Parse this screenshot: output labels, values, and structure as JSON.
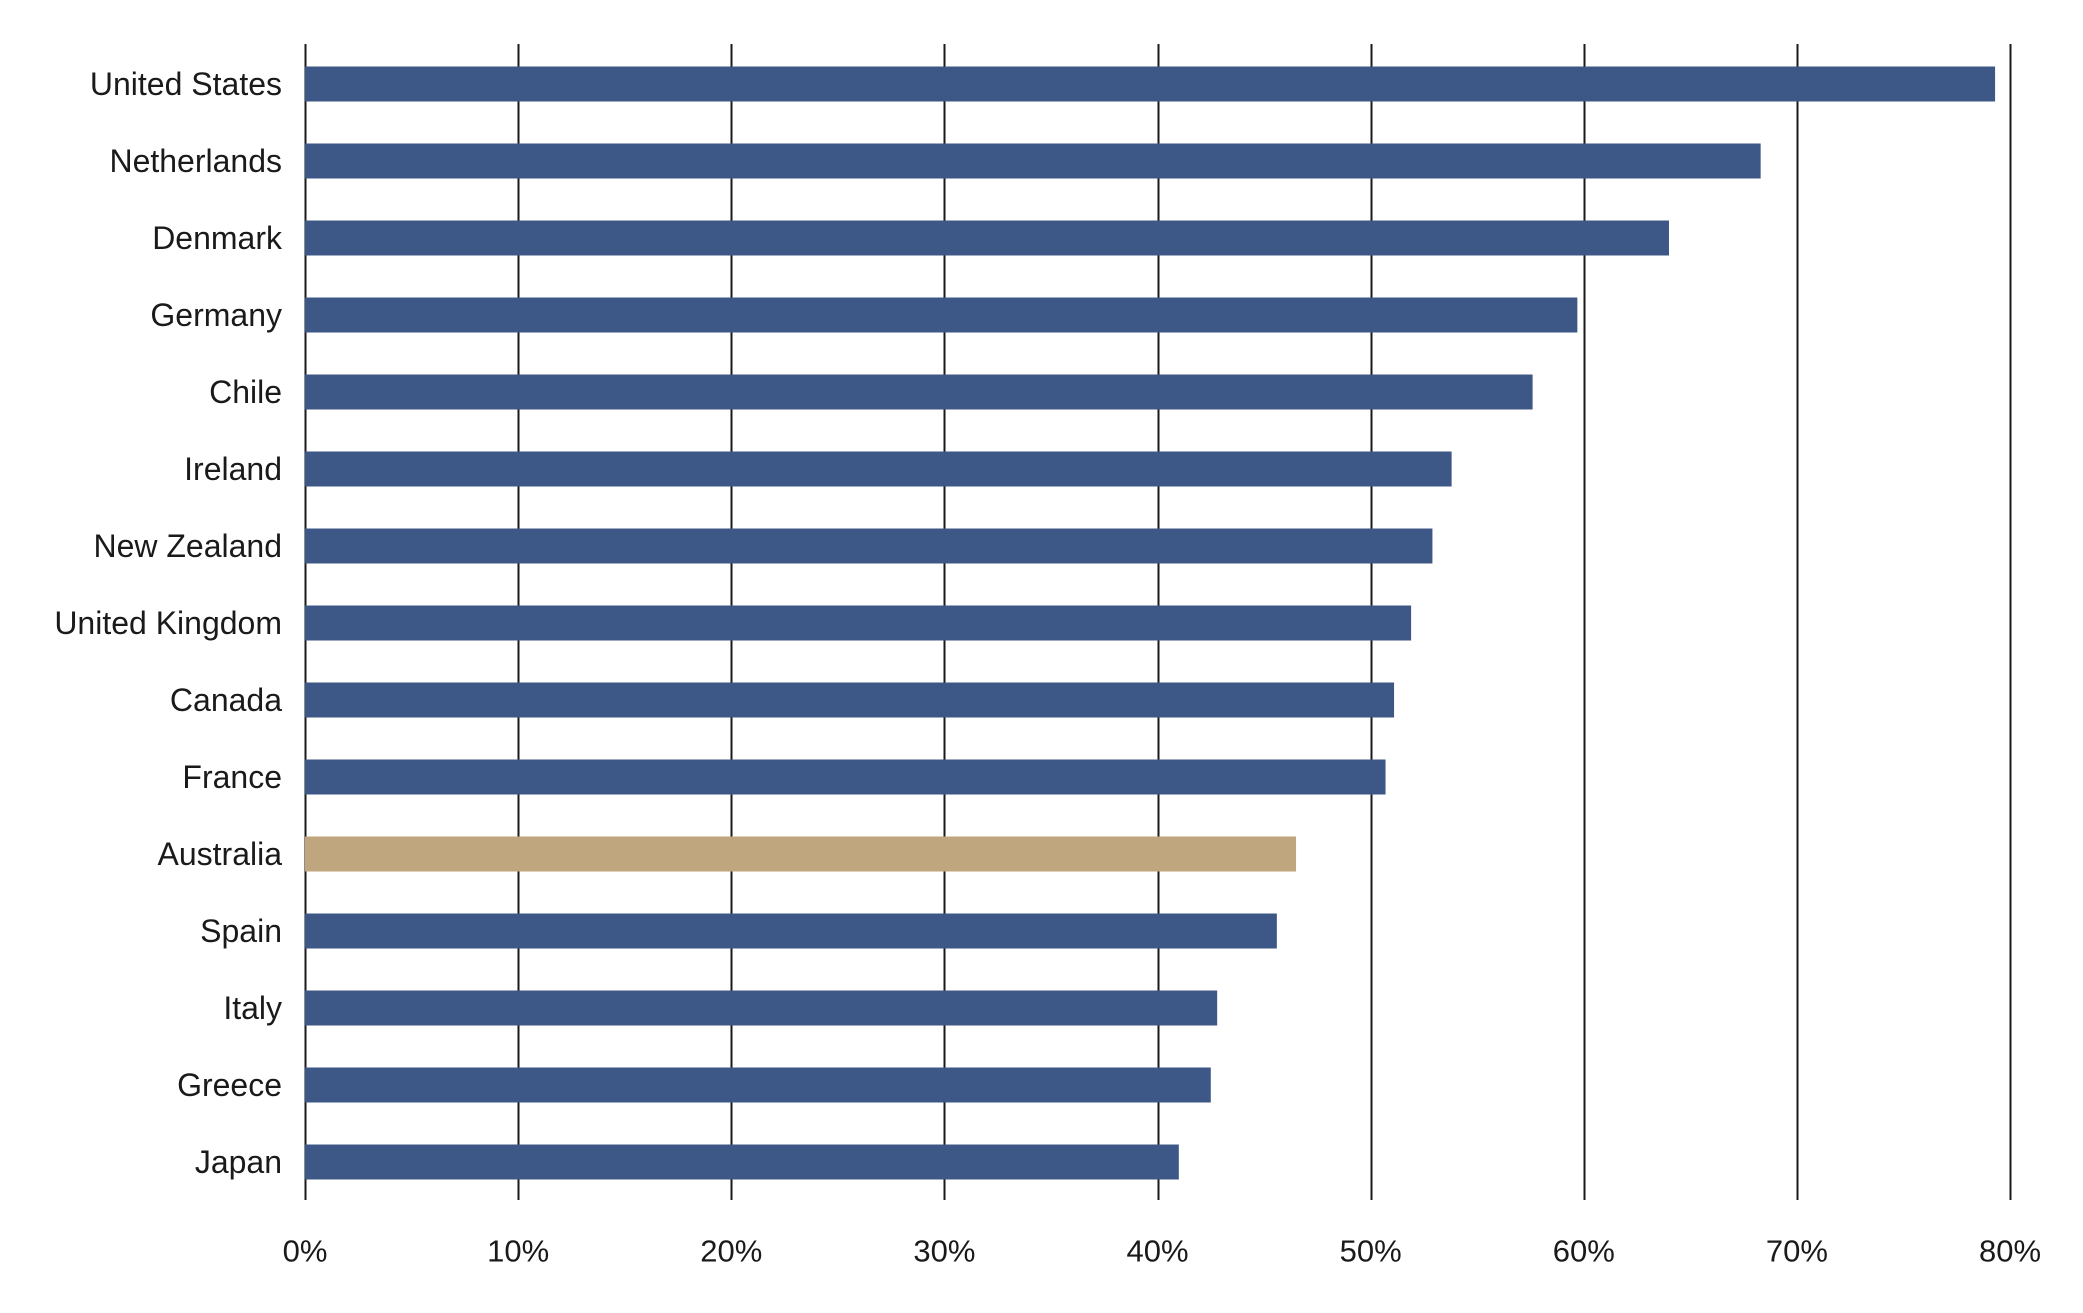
{
  "chart_data": {
    "type": "bar",
    "orientation": "horizontal",
    "categories": [
      "United States",
      "Netherlands",
      "Denmark",
      "Germany",
      "Chile",
      "Ireland",
      "New Zealand",
      "United Kingdom",
      "Canada",
      "France",
      "Australia",
      "Spain",
      "Italy",
      "Greece",
      "Japan"
    ],
    "values": [
      79.3,
      68.3,
      64.0,
      59.7,
      57.6,
      53.8,
      52.9,
      51.9,
      51.1,
      50.7,
      46.5,
      45.6,
      42.8,
      42.5,
      41.0
    ],
    "highlight": "Australia",
    "xlim": [
      0,
      80
    ],
    "xticks": [
      0,
      10,
      20,
      30,
      40,
      50,
      60,
      70,
      80
    ],
    "xtick_labels": [
      "0%",
      "10%",
      "20%",
      "30%",
      "40%",
      "50%",
      "60%",
      "70%",
      "80%"
    ],
    "grid": "vertical",
    "legend": "none",
    "title": "",
    "xlabel": "",
    "ylabel": "",
    "colors": {
      "bar": "#3d5787",
      "highlight": "#c0a67e",
      "grid": "#1a1a1a",
      "text": "#1a1a1a"
    }
  }
}
